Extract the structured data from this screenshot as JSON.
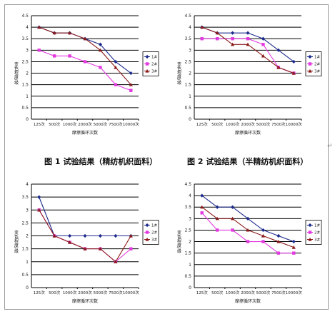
{
  "figures": [
    {
      "caption": "图 1  试验结果（精纺机织面料）"
    },
    {
      "caption": "图 2  试验结果（半精纺机织面料）"
    },
    {
      "caption": ""
    },
    {
      "caption": ""
    }
  ],
  "chart_data": [
    {
      "type": "line",
      "title": "",
      "xlabel": "摩擦循环次数",
      "ylabel": "变色程度/级",
      "categories": [
        "125次",
        "500次",
        "1000次",
        "2000次",
        "5000次",
        "7500次",
        "10000次"
      ],
      "ylim": [
        0,
        4.5
      ],
      "yticks": [
        "0",
        "0.5",
        "1",
        "1.5",
        "2",
        "2.5",
        "3",
        "3.5",
        "4",
        "4.5"
      ],
      "grid": true,
      "legend_position": "right",
      "series": [
        {
          "name": "1#",
          "color": "#1c2a8c",
          "marker": "diamond",
          "values": [
            4,
            3.75,
            3.75,
            3.5,
            3.25,
            2.5,
            2
          ]
        },
        {
          "name": "2#",
          "color": "#e23ae0",
          "marker": "square",
          "values": [
            3,
            2.75,
            2.75,
            2.5,
            2.25,
            1.5,
            1.25
          ]
        },
        {
          "name": "3#",
          "color": "#8b1a1a",
          "marker": "triangle",
          "values": [
            4,
            3.75,
            3.75,
            3.5,
            3,
            2.25,
            1.5
          ]
        }
      ]
    },
    {
      "type": "line",
      "title": "",
      "xlabel": "摩擦循环次数",
      "ylabel": "变色程度/级",
      "categories": [
        "125次",
        "500次",
        "1000次",
        "2000次",
        "5000次",
        "7500次",
        "10000次"
      ],
      "ylim": [
        0,
        4.5
      ],
      "yticks": [
        "0",
        "0.5",
        "1",
        "1.5",
        "2",
        "2.5",
        "3",
        "3.5",
        "4",
        "4.5"
      ],
      "grid": true,
      "legend_position": "right",
      "series": [
        {
          "name": "1#",
          "color": "#1c2a8c",
          "marker": "diamond",
          "values": [
            4,
            3.75,
            3.75,
            3.75,
            3.5,
            3,
            2.5
          ]
        },
        {
          "name": "2#",
          "color": "#e23ae0",
          "marker": "square",
          "values": [
            3.5,
            3.5,
            3.5,
            3.5,
            3.25,
            2.25,
            2
          ]
        },
        {
          "name": "3#",
          "color": "#8b1a1a",
          "marker": "triangle",
          "values": [
            4,
            3.75,
            3.25,
            3.25,
            2.75,
            2.25,
            2
          ]
        }
      ]
    },
    {
      "type": "line",
      "title": "",
      "xlabel": "摩擦循环次数",
      "ylabel": "变色程度/级",
      "categories": [
        "125次",
        "500次",
        "1000次",
        "2000次",
        "5000次",
        "7500次",
        "10000次"
      ],
      "ylim": [
        0,
        4
      ],
      "yticks": [
        "0",
        "0.5",
        "1",
        "1.5",
        "2",
        "2.5",
        "3",
        "3.5",
        "4"
      ],
      "grid": true,
      "legend_position": "right",
      "series": [
        {
          "name": "1#",
          "color": "#1c2a8c",
          "marker": "diamond",
          "values": [
            3.5,
            2,
            2,
            2,
            2,
            2,
            2
          ]
        },
        {
          "name": "2#",
          "color": "#e23ae0",
          "marker": "square",
          "values": [
            3,
            2,
            1.75,
            1.5,
            1.5,
            1,
            1.5
          ]
        },
        {
          "name": "3#",
          "color": "#8b1a1a",
          "marker": "triangle",
          "values": [
            3,
            2,
            1.75,
            1.5,
            1.5,
            1,
            2
          ]
        }
      ]
    },
    {
      "type": "line",
      "title": "",
      "xlabel": "摩擦循环次数",
      "ylabel": "变色程度/级",
      "categories": [
        "125次",
        "500次",
        "1000次",
        "2000次",
        "5000次",
        "7500次",
        "10000次"
      ],
      "ylim": [
        0,
        4.5
      ],
      "yticks": [
        "0",
        "0.5",
        "1",
        "1.5",
        "2",
        "2.5",
        "3",
        "3.5",
        "4",
        "4.5"
      ],
      "grid": true,
      "legend_position": "right",
      "series": [
        {
          "name": "1#",
          "color": "#1c2a8c",
          "marker": "diamond",
          "values": [
            4,
            3.5,
            3.5,
            3,
            2.5,
            2.25,
            2
          ]
        },
        {
          "name": "2#",
          "color": "#e23ae0",
          "marker": "square",
          "values": [
            3.25,
            2.5,
            2.5,
            2,
            2,
            1.5,
            1.5
          ]
        },
        {
          "name": "3#",
          "color": "#8b1a1a",
          "marker": "triangle",
          "values": [
            3.5,
            3,
            3,
            2.5,
            2.25,
            2,
            1.75
          ]
        }
      ]
    }
  ],
  "stray_mark": "↵"
}
